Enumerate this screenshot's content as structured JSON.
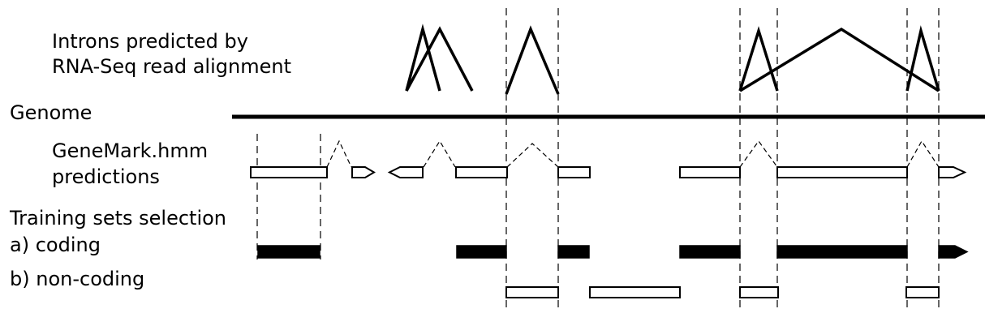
{
  "labels": {
    "introns_line1": "Introns predicted by",
    "introns_line2": "RNA-Seq read alignment",
    "genome": "Genome",
    "genemark_line1": "GeneMark.hmm",
    "genemark_line2": "predictions",
    "training": "Training sets selection",
    "coding": "a) coding",
    "noncoding": "b) non-coding"
  },
  "colors": {
    "ink": "#000000",
    "background": "#ffffff"
  }
}
